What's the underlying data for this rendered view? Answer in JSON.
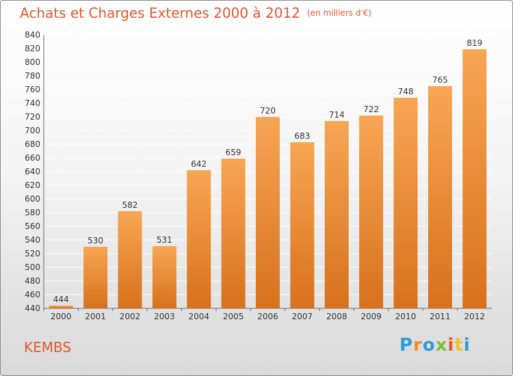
{
  "title": "Achats et Charges Externes 2000 à 2012",
  "unit": "(en milliers d'€)",
  "commune": "KEMBS",
  "logo": [
    "P",
    "r",
    "o",
    "x",
    "i",
    "t",
    "i"
  ],
  "colors": {
    "title": "#e4572e",
    "bar_top": "#f7a654",
    "bar_bottom": "#d8711c",
    "grid": "#ffffff",
    "axis_text": "#333333",
    "logo": [
      "#2e9bd6",
      "#f28c28",
      "#2e9bd6",
      "#7cbf3c",
      "#e4572e",
      "#f2c12e",
      "#2e9bd6"
    ]
  },
  "chart_data": {
    "type": "bar",
    "categories": [
      "2000",
      "2001",
      "2002",
      "2003",
      "2004",
      "2005",
      "2006",
      "2007",
      "2008",
      "2009",
      "2010",
      "2011",
      "2012"
    ],
    "values": [
      444,
      530,
      582,
      531,
      642,
      659,
      720,
      683,
      714,
      722,
      748,
      765,
      819
    ],
    "ylim": [
      440,
      840
    ],
    "yticks": [
      440,
      460,
      480,
      500,
      520,
      540,
      560,
      580,
      600,
      620,
      640,
      660,
      680,
      700,
      720,
      740,
      760,
      780,
      800,
      820,
      840
    ],
    "grid": true,
    "xlabel": "",
    "ylabel": ""
  }
}
